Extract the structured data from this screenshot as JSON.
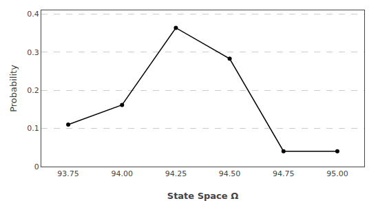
{
  "chart_data": {
    "type": "line",
    "x": [
      93.75,
      94.0,
      94.25,
      94.5,
      94.75,
      95.0
    ],
    "values": [
      0.1103,
      0.1617,
      0.364,
      0.2831,
      0.0404,
      0.0404
    ],
    "xlabel": "State Space Ω",
    "ylabel": "Probability",
    "xlim": [
      93.625,
      95.125
    ],
    "ylim": [
      0,
      0.41
    ],
    "xticks": [
      93.75,
      {
        "value": 94.0,
        "label": "94.00"
      },
      94.25,
      {
        "value": 94.5,
        "label": "94.50"
      },
      94.75,
      {
        "value": 95.0,
        "label": "95.00"
      }
    ],
    "yticks": [
      0,
      0.1,
      0.2,
      0.3,
      0.4
    ],
    "color": "#000000",
    "marker": "circle",
    "grid": true
  }
}
